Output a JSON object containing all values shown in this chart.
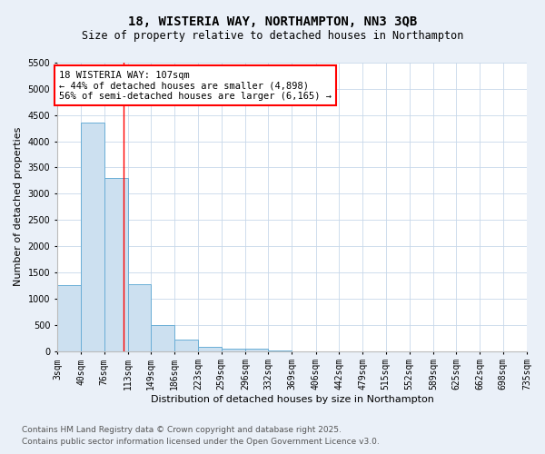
{
  "title": "18, WISTERIA WAY, NORTHAMPTON, NN3 3QB",
  "subtitle": "Size of property relative to detached houses in Northampton",
  "xlabel": "Distribution of detached houses by size in Northampton",
  "ylabel": "Number of detached properties",
  "bin_labels": [
    "3sqm",
    "40sqm",
    "76sqm",
    "113sqm",
    "149sqm",
    "186sqm",
    "223sqm",
    "259sqm",
    "296sqm",
    "332sqm",
    "369sqm",
    "406sqm",
    "442sqm",
    "479sqm",
    "515sqm",
    "552sqm",
    "589sqm",
    "625sqm",
    "662sqm",
    "698sqm",
    "735sqm"
  ],
  "bin_edges": [
    3,
    40,
    76,
    113,
    149,
    186,
    223,
    259,
    296,
    332,
    369,
    406,
    442,
    479,
    515,
    552,
    589,
    625,
    662,
    698,
    735
  ],
  "bar_values": [
    1250,
    4350,
    3300,
    1270,
    500,
    220,
    80,
    50,
    40,
    5,
    0,
    0,
    0,
    0,
    0,
    0,
    0,
    0,
    0,
    0
  ],
  "bar_color": "#cce0f0",
  "bar_edge_color": "#6aaed6",
  "red_line_x": 107,
  "ylim": [
    0,
    5500
  ],
  "yticks": [
    0,
    500,
    1000,
    1500,
    2000,
    2500,
    3000,
    3500,
    4000,
    4500,
    5000,
    5500
  ],
  "annotation_title": "18 WISTERIA WAY: 107sqm",
  "annotation_line1": "← 44% of detached houses are smaller (4,898)",
  "annotation_line2": "56% of semi-detached houses are larger (6,165) →",
  "footnote1": "Contains HM Land Registry data © Crown copyright and database right 2025.",
  "footnote2": "Contains public sector information licensed under the Open Government Licence v3.0.",
  "background_color": "#eaf0f8",
  "plot_bg_color": "#ffffff",
  "grid_color": "#c8d8ea",
  "title_fontsize": 10,
  "subtitle_fontsize": 8.5,
  "axis_label_fontsize": 8,
  "tick_fontsize": 7,
  "annotation_fontsize": 7.5,
  "footnote_fontsize": 6.5
}
